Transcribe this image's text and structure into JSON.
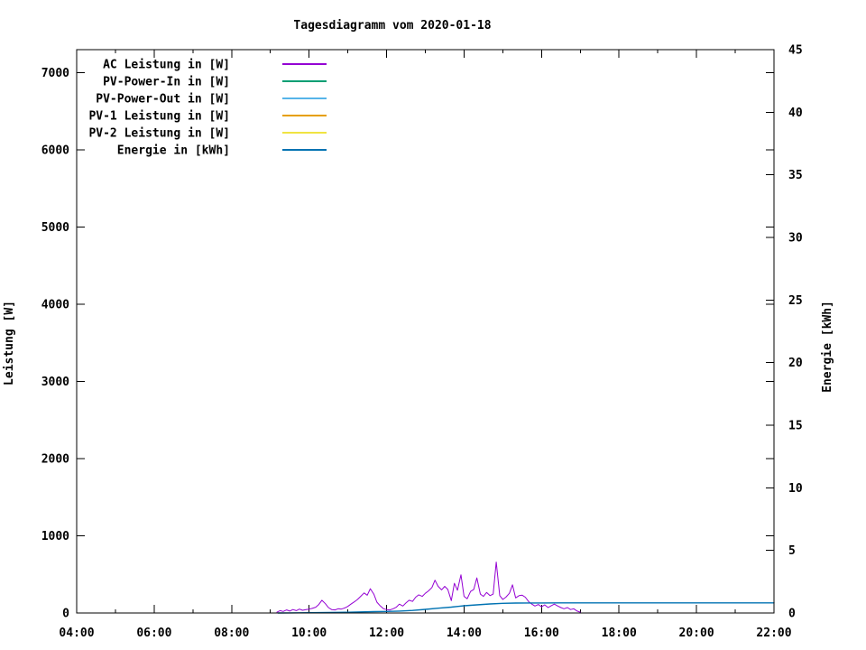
{
  "title": "Tagesdiagramm vom 2020-01-18",
  "axes": {
    "y1_label": "Leistung [W]",
    "y2_label": "Energie [kWh]",
    "x_tick_labels": [
      "04:00",
      "06:00",
      "08:00",
      "10:00",
      "12:00",
      "14:00",
      "16:00",
      "18:00",
      "20:00",
      "22:00"
    ],
    "y1_tick_labels": [
      "0",
      "1000",
      "2000",
      "3000",
      "4000",
      "5000",
      "6000",
      "7000"
    ],
    "y2_tick_labels": [
      "0",
      "5",
      "10",
      "15",
      "20",
      "25",
      "30",
      "35",
      "40",
      "45"
    ]
  },
  "legend": [
    {
      "label": "AC Leistung in [W]",
      "color": "#9400d3"
    },
    {
      "label": "PV-Power-In in [W]",
      "color": "#009e73"
    },
    {
      "label": "PV-Power-Out in [W]",
      "color": "#56b4e9"
    },
    {
      "label": "PV-1 Leistung in [W]",
      "color": "#e69f00"
    },
    {
      "label": "PV-2 Leistung in [W]",
      "color": "#f0e442"
    },
    {
      "label": "Energie in [kWh]",
      "color": "#0072b2"
    }
  ],
  "chart_data": {
    "type": "line",
    "title": "Tagesdiagramm vom 2020-01-18",
    "x_axis": {
      "unit": "time_hours",
      "range": [
        4,
        22
      ],
      "major_step": 2,
      "minor_step": 1,
      "tick_format": "HH:00"
    },
    "y_left": {
      "label": "Leistung [W]",
      "range": [
        0,
        7300
      ],
      "tick_step": 1000
    },
    "y_right": {
      "label": "Energie [kWh]",
      "range": [
        0,
        45
      ],
      "tick_step": 5
    },
    "grid": false,
    "legend_position": "top-left-inside",
    "series": [
      {
        "name": "AC Leistung in [W]",
        "color": "#9400d3",
        "axis": "y_left",
        "width": 1,
        "points": [
          [
            9.17,
            10
          ],
          [
            9.25,
            30
          ],
          [
            9.33,
            20
          ],
          [
            9.42,
            40
          ],
          [
            9.5,
            25
          ],
          [
            9.58,
            45
          ],
          [
            9.67,
            30
          ],
          [
            9.75,
            50
          ],
          [
            9.83,
            35
          ],
          [
            9.92,
            45
          ],
          [
            10.0,
            50
          ],
          [
            10.08,
            60
          ],
          [
            10.17,
            75
          ],
          [
            10.25,
            110
          ],
          [
            10.33,
            165
          ],
          [
            10.42,
            120
          ],
          [
            10.5,
            70
          ],
          [
            10.58,
            45
          ],
          [
            10.67,
            40
          ],
          [
            10.75,
            55
          ],
          [
            10.83,
            50
          ],
          [
            10.92,
            65
          ],
          [
            11.0,
            85
          ],
          [
            11.08,
            115
          ],
          [
            11.17,
            145
          ],
          [
            11.25,
            175
          ],
          [
            11.33,
            215
          ],
          [
            11.42,
            260
          ],
          [
            11.5,
            230
          ],
          [
            11.58,
            315
          ],
          [
            11.67,
            245
          ],
          [
            11.75,
            140
          ],
          [
            11.83,
            95
          ],
          [
            11.92,
            55
          ],
          [
            12.0,
            45
          ],
          [
            12.08,
            40
          ],
          [
            12.17,
            55
          ],
          [
            12.25,
            75
          ],
          [
            12.33,
            115
          ],
          [
            12.42,
            90
          ],
          [
            12.5,
            130
          ],
          [
            12.58,
            165
          ],
          [
            12.67,
            150
          ],
          [
            12.75,
            205
          ],
          [
            12.83,
            235
          ],
          [
            12.92,
            215
          ],
          [
            13.0,
            255
          ],
          [
            13.08,
            285
          ],
          [
            13.17,
            330
          ],
          [
            13.25,
            425
          ],
          [
            13.33,
            345
          ],
          [
            13.42,
            300
          ],
          [
            13.5,
            345
          ],
          [
            13.58,
            305
          ],
          [
            13.67,
            160
          ],
          [
            13.75,
            385
          ],
          [
            13.83,
            295
          ],
          [
            13.92,
            495
          ],
          [
            14.0,
            215
          ],
          [
            14.08,
            185
          ],
          [
            14.17,
            280
          ],
          [
            14.25,
            305
          ],
          [
            14.33,
            455
          ],
          [
            14.42,
            245
          ],
          [
            14.5,
            215
          ],
          [
            14.58,
            265
          ],
          [
            14.67,
            225
          ],
          [
            14.75,
            245
          ],
          [
            14.83,
            660
          ],
          [
            14.92,
            225
          ],
          [
            15.0,
            175
          ],
          [
            15.08,
            205
          ],
          [
            15.17,
            255
          ],
          [
            15.25,
            365
          ],
          [
            15.33,
            195
          ],
          [
            15.42,
            225
          ],
          [
            15.5,
            230
          ],
          [
            15.58,
            205
          ],
          [
            15.67,
            145
          ],
          [
            15.75,
            115
          ],
          [
            15.83,
            90
          ],
          [
            15.92,
            110
          ],
          [
            16.0,
            80
          ],
          [
            16.08,
            105
          ],
          [
            16.17,
            70
          ],
          [
            16.25,
            95
          ],
          [
            16.33,
            115
          ],
          [
            16.42,
            90
          ],
          [
            16.5,
            70
          ],
          [
            16.58,
            55
          ],
          [
            16.67,
            70
          ],
          [
            16.75,
            45
          ],
          [
            16.83,
            55
          ],
          [
            16.92,
            25
          ],
          [
            17.0,
            10
          ]
        ]
      },
      {
        "name": "PV-Power-In in [W]",
        "color": "#009e73",
        "axis": "y_left",
        "width": 1,
        "points": []
      },
      {
        "name": "PV-Power-Out in [W]",
        "color": "#56b4e9",
        "axis": "y_left",
        "width": 1,
        "points": []
      },
      {
        "name": "PV-1 Leistung in [W]",
        "color": "#e69f00",
        "axis": "y_left",
        "width": 1,
        "points": []
      },
      {
        "name": "PV-2 Leistung in [W]",
        "color": "#f0e442",
        "axis": "y_left",
        "width": 1,
        "points": []
      },
      {
        "name": "Energie in [kWh]",
        "color": "#0072b2",
        "axis": "y_right",
        "width": 1.4,
        "points": [
          [
            9.2,
            0
          ],
          [
            9.5,
            0.01
          ],
          [
            10.0,
            0.02
          ],
          [
            10.5,
            0.04
          ],
          [
            10.75,
            0.05
          ],
          [
            11.0,
            0.06
          ],
          [
            11.33,
            0.09
          ],
          [
            11.67,
            0.11
          ],
          [
            12.0,
            0.12
          ],
          [
            12.33,
            0.15
          ],
          [
            12.67,
            0.2
          ],
          [
            13.0,
            0.29
          ],
          [
            13.33,
            0.38
          ],
          [
            13.67,
            0.47
          ],
          [
            14.0,
            0.58
          ],
          [
            14.33,
            0.65
          ],
          [
            14.67,
            0.72
          ],
          [
            15.0,
            0.77
          ],
          [
            15.33,
            0.79
          ],
          [
            15.67,
            0.8
          ],
          [
            16.0,
            0.8
          ],
          [
            16.5,
            0.81
          ],
          [
            17.0,
            0.81
          ],
          [
            22.0,
            0.81
          ]
        ]
      }
    ]
  }
}
